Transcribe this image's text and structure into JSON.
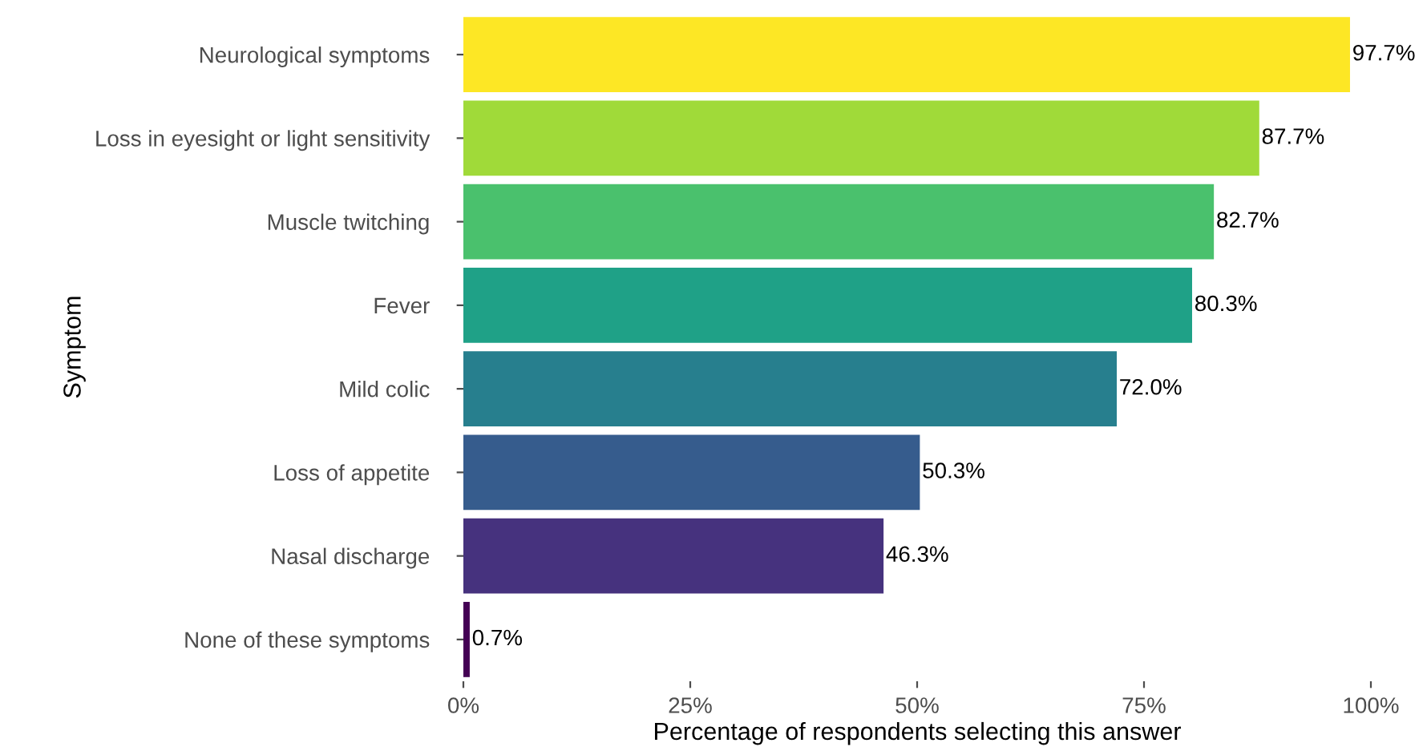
{
  "chart_data": {
    "type": "bar",
    "orientation": "horizontal",
    "xlabel": "Percentage of respondents selecting this answer",
    "ylabel": "Symptom",
    "categories": [
      "Neurological symptoms",
      "Loss in eyesight or light sensitivity",
      "Muscle twitching",
      "Fever",
      "Mild colic",
      "Loss of appetite",
      "Nasal discharge",
      "None of these symptoms"
    ],
    "values": [
      97.7,
      87.7,
      82.7,
      80.3,
      72.0,
      50.3,
      46.3,
      0.7
    ],
    "colors": [
      "#fde725",
      "#a0da39",
      "#4ac16d",
      "#1fa187",
      "#277f8e",
      "#365c8d",
      "#46327e",
      "#440154"
    ],
    "value_labels": [
      "97.7%",
      "87.7%",
      "82.7%",
      "80.3%",
      "72.0%",
      "50.3%",
      "46.3%",
      "0.7%"
    ],
    "xlim": [
      0,
      100
    ],
    "xticks": [
      {
        "value": 0,
        "label": "0%"
      },
      {
        "value": 25,
        "label": "25%"
      },
      {
        "value": 50,
        "label": "50%"
      },
      {
        "value": 75,
        "label": "75%"
      },
      {
        "value": 100,
        "label": "100%"
      }
    ],
    "grid": false,
    "legend": false
  }
}
